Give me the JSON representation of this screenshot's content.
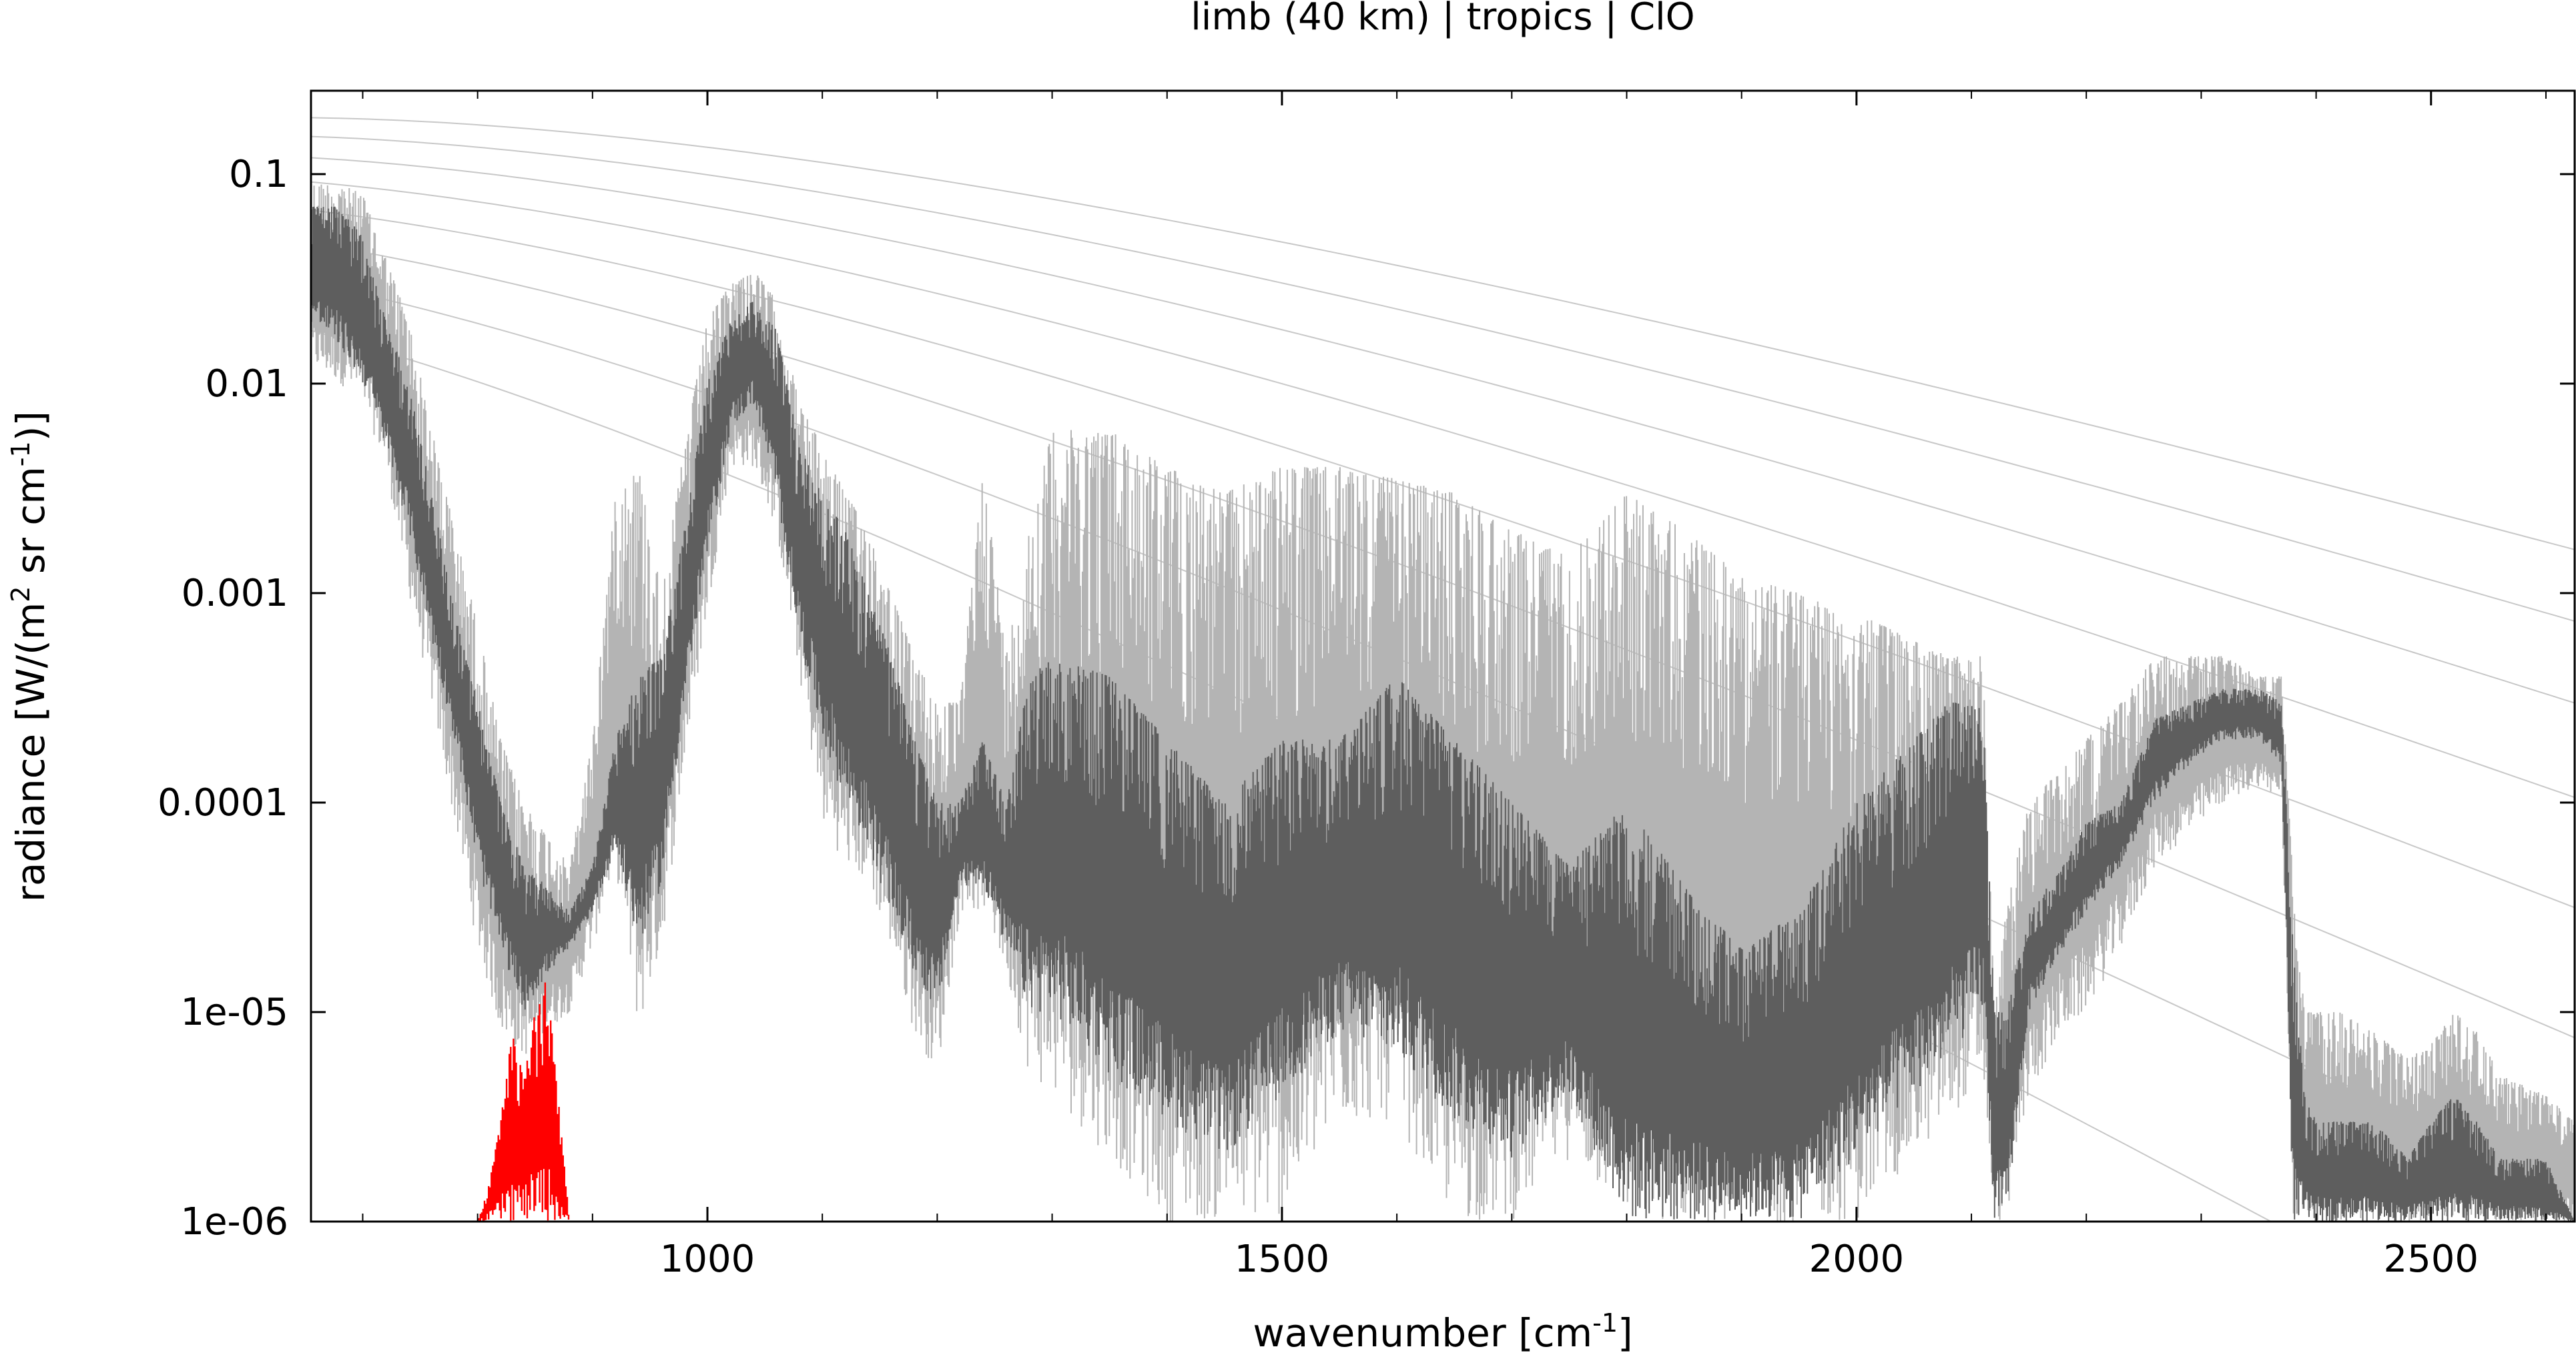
{
  "chart_data": {
    "type": "line",
    "title": "limb (40 km) | tropics | ClO",
    "xlabel": "wavenumber [cm",
    "xlabel_sup": "-1",
    "xlabel_end": "]",
    "ylabel": {
      "part1": "radiance [W/(m",
      "sup1": "2",
      "part2": " sr cm",
      "sup2": "-1",
      "part3": ")]"
    },
    "xlim": [
      655,
      2625
    ],
    "ylim": [
      1e-06,
      0.25
    ],
    "y_scale": "log",
    "grid": false,
    "x_ticks": [
      {
        "value": 1000,
        "label": "1000"
      },
      {
        "value": 1500,
        "label": "1500"
      },
      {
        "value": 2000,
        "label": "2000"
      },
      {
        "value": 2500,
        "label": "2500"
      }
    ],
    "y_ticks": [
      {
        "value": 0.1,
        "label": "0.1"
      },
      {
        "value": 0.01,
        "label": "0.01"
      },
      {
        "value": 0.001,
        "label": "0.001"
      },
      {
        "value": 0.0001,
        "label": "0.0001"
      },
      {
        "value": 1e-05,
        "label": "1e-05"
      },
      {
        "value": 1e-06,
        "label": "1e-06"
      }
    ],
    "planck_temperatures_K": [
      180,
      200,
      220,
      240,
      260,
      280,
      300,
      320
    ],
    "series": [
      {
        "role": "total spectrum (light)",
        "color": "#b4b4b4",
        "x": [
          655,
          680,
          700,
          720,
          740,
          760,
          780,
          800,
          820,
          840,
          860,
          880,
          900,
          920,
          940,
          960,
          980,
          1000,
          1020,
          1040,
          1060,
          1080,
          1100,
          1120,
          1140,
          1160,
          1180,
          1200,
          1220,
          1240,
          1260,
          1280,
          1300,
          1350,
          1400,
          1450,
          1500,
          1550,
          1600,
          1650,
          1700,
          1750,
          1800,
          1850,
          1900,
          1950,
          2000,
          2050,
          2080,
          2110,
          2120,
          2130,
          2150,
          2180,
          2200,
          2230,
          2260,
          2290,
          2320,
          2350,
          2370,
          2380,
          2390,
          2400,
          2420,
          2450,
          2480,
          2500,
          2520,
          2540,
          2560,
          2600,
          2625
        ],
        "hi": [
          0.09,
          0.09,
          0.08,
          0.04,
          0.02,
          0.006,
          0.002,
          0.0007,
          0.0002,
          0.0001,
          7e-05,
          5e-05,
          0.0002,
          0.003,
          0.004,
          0.001,
          0.005,
          0.02,
          0.03,
          0.035,
          0.025,
          0.008,
          0.005,
          0.003,
          0.002,
          0.001,
          0.0005,
          0.0003,
          0.0003,
          0.004,
          0.0005,
          0.002,
          0.006,
          0.006,
          0.004,
          0.003,
          0.004,
          0.004,
          0.0035,
          0.003,
          0.002,
          0.0015,
          0.003,
          0.002,
          0.0012,
          0.001,
          0.0008,
          0.0006,
          0.0005,
          0.0005,
          1e-05,
          3e-05,
          0.0001,
          0.00015,
          0.0002,
          0.0003,
          0.0005,
          0.0005,
          0.0005,
          0.0004,
          0.0004,
          4e-05,
          1e-05,
          1e-05,
          1e-05,
          8e-06,
          6e-06,
          7e-06,
          1e-05,
          8e-06,
          5e-06,
          4e-06,
          3e-06
        ],
        "lo": [
          0.012,
          0.01,
          0.008,
          0.004,
          0.001,
          0.0003,
          8e-05,
          2e-05,
          8e-06,
          6e-06,
          8e-06,
          1e-05,
          2e-05,
          5e-05,
          8e-06,
          2e-05,
          0.00015,
          0.0008,
          0.004,
          0.004,
          0.002,
          0.0004,
          8e-05,
          5e-05,
          4e-05,
          2e-05,
          8e-06,
          5e-06,
          3e-05,
          3e-05,
          1.5e-05,
          5e-06,
          4e-06,
          2e-06,
          1e-06,
          1e-06,
          1e-06,
          3e-06,
          3e-06,
          1e-06,
          1e-06,
          2e-06,
          1e-06,
          1e-06,
          1e-06,
          1e-06,
          1e-06,
          2e-06,
          3e-06,
          5e-06,
          1e-06,
          1e-06,
          4e-06,
          8e-06,
          1e-05,
          2e-05,
          5e-05,
          7e-05,
          0.0001,
          0.00012,
          0.0001,
          1e-06,
          1e-06,
          1e-06,
          1e-06,
          1e-06,
          1e-06,
          1e-06,
          1e-06,
          1e-06,
          1e-06,
          1e-06,
          1e-06
        ]
      },
      {
        "role": "total spectrum (dark)",
        "color": "#5e5e5e",
        "x": [
          655,
          680,
          700,
          720,
          740,
          760,
          780,
          800,
          820,
          840,
          860,
          880,
          900,
          920,
          940,
          960,
          980,
          1000,
          1020,
          1040,
          1060,
          1080,
          1100,
          1120,
          1140,
          1160,
          1180,
          1200,
          1220,
          1240,
          1260,
          1280,
          1300,
          1350,
          1400,
          1450,
          1500,
          1550,
          1600,
          1650,
          1700,
          1750,
          1800,
          1850,
          1900,
          1950,
          2000,
          2050,
          2080,
          2110,
          2120,
          2130,
          2150,
          2180,
          2200,
          2230,
          2260,
          2290,
          2320,
          2350,
          2370,
          2380,
          2390,
          2400,
          2420,
          2450,
          2480,
          2500,
          2520,
          2540,
          2560,
          2600,
          2625
        ],
        "hi": [
          0.07,
          0.07,
          0.05,
          0.02,
          0.01,
          0.003,
          0.0008,
          0.0003,
          0.0001,
          5e-05,
          4e-05,
          3e-05,
          5e-05,
          0.0002,
          0.0004,
          0.0005,
          0.002,
          0.01,
          0.02,
          0.025,
          0.018,
          0.005,
          0.003,
          0.002,
          0.001,
          0.0005,
          0.0002,
          0.0001,
          0.0001,
          0.0002,
          0.0001,
          0.0004,
          0.0005,
          0.0004,
          0.0002,
          0.0001,
          0.0002,
          0.0002,
          0.0004,
          0.0002,
          0.0001,
          5e-05,
          0.0001,
          4e-05,
          2e-05,
          3e-05,
          0.0001,
          0.0002,
          0.0003,
          0.0003,
          1e-05,
          1e-05,
          3e-05,
          5e-05,
          8e-05,
          0.0001,
          0.00025,
          0.0003,
          0.00035,
          0.00035,
          0.0003,
          2e-05,
          4e-06,
          3e-06,
          3e-06,
          3e-06,
          2e-06,
          3e-06,
          4e-06,
          3e-06,
          2e-06,
          2e-06,
          1e-06
        ],
        "lo": [
          0.02,
          0.015,
          0.01,
          0.005,
          0.002,
          0.0006,
          0.0002,
          5e-05,
          2e-05,
          1e-05,
          1.5e-05,
          2e-05,
          3e-05,
          6e-05,
          2e-05,
          4e-05,
          0.0003,
          0.0015,
          0.006,
          0.008,
          0.003,
          0.0006,
          0.0002,
          0.0001,
          6e-05,
          3e-05,
          1.5e-05,
          1e-05,
          4e-05,
          4e-05,
          2e-05,
          1e-05,
          1e-05,
          5e-06,
          3e-06,
          2e-06,
          4e-06,
          8e-06,
          6e-06,
          3e-06,
          2e-06,
          4e-06,
          1e-06,
          1e-06,
          1e-06,
          1e-06,
          2e-06,
          4e-06,
          6e-06,
          1e-05,
          1e-06,
          1e-06,
          1e-05,
          2e-05,
          3e-05,
          5e-05,
          0.0001,
          0.00015,
          0.0002,
          0.0002,
          0.00015,
          1e-06,
          1e-06,
          1e-06,
          1e-06,
          1e-06,
          1e-06,
          1e-06,
          1e-06,
          1e-06,
          1e-06,
          1e-06,
          1e-06
        ]
      },
      {
        "role": "ClO contribution",
        "color": "#ff0000",
        "x": [
          800,
          810,
          820,
          830,
          840,
          850,
          860,
          870,
          880
        ],
        "hi": [
          1e-06,
          1.5e-06,
          3e-06,
          8e-06,
          5e-06,
          1e-05,
          1.5e-05,
          4e-06,
          1e-06
        ],
        "lo": [
          1e-06,
          1e-06,
          1e-06,
          1e-06,
          1e-06,
          1e-06,
          1e-06,
          1e-06,
          1e-06
        ]
      }
    ]
  }
}
